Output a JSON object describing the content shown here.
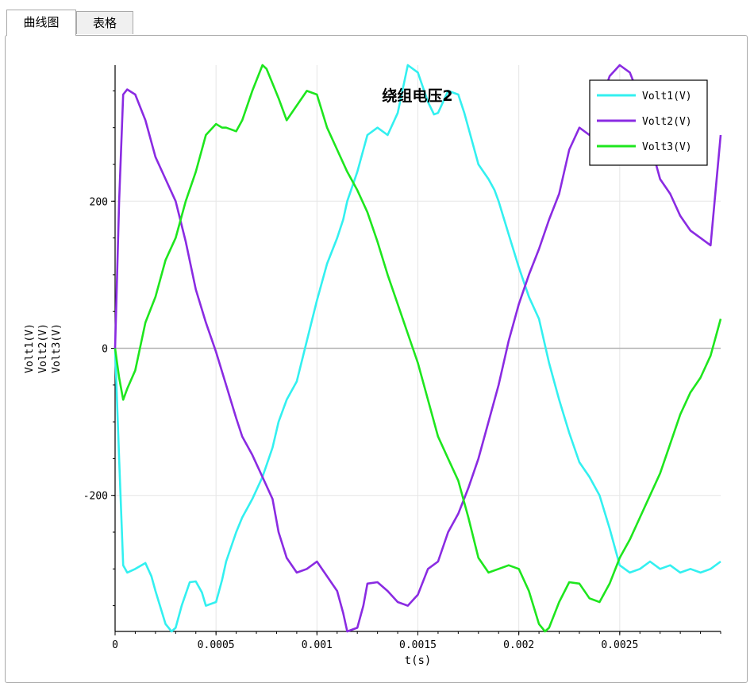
{
  "tabs": [
    {
      "label": "曲线图",
      "active": true
    },
    {
      "label": "表格",
      "active": false
    }
  ],
  "chart_data": {
    "type": "line",
    "title": "绕组电压2",
    "xlabel": "t(s)",
    "ylabel_lines": [
      "Volt1(V)",
      "Volt2(V)",
      "Volt3(V)"
    ],
    "xlim": [
      0,
      0.003
    ],
    "ylim": [
      -385,
      385
    ],
    "xticks": [
      0,
      0.0005,
      0.001,
      0.0015,
      0.002,
      0.0025
    ],
    "xtick_labels": [
      "0",
      "0.0005",
      "0.001",
      "0.0015",
      "0.002",
      "0.0025"
    ],
    "yticks": [
      -200,
      0,
      200
    ],
    "ytick_labels": [
      "-200",
      "0",
      "200"
    ],
    "grid": true,
    "legend_position": "top-right",
    "series": [
      {
        "name": "Volt1(V)",
        "color": "#33f0f0",
        "x": [
          0,
          2e-05,
          4e-05,
          6e-05,
          0.0001,
          0.00015,
          0.00018,
          0.0002,
          0.00025,
          0.00028,
          0.0003,
          0.00033,
          0.00037,
          0.0004,
          0.00043,
          0.00045,
          0.0005,
          0.00053,
          0.00055,
          0.0006,
          0.00063,
          0.00068,
          0.00073,
          0.00078,
          0.00081,
          0.00085,
          0.0009,
          0.00095,
          0.001,
          0.00105,
          0.0011,
          0.00113,
          0.00115,
          0.0012,
          0.00125,
          0.0013,
          0.00135,
          0.0014,
          0.00145,
          0.0015,
          0.00155,
          0.00158,
          0.0016,
          0.00165,
          0.0017,
          0.00173,
          0.00175,
          0.0018,
          0.00185,
          0.00188,
          0.0019,
          0.00195,
          0.002,
          0.00205,
          0.0021,
          0.00215,
          0.0022,
          0.00225,
          0.0023,
          0.00235,
          0.0024,
          0.00245,
          0.0025,
          0.00255,
          0.0026,
          0.00265,
          0.0027,
          0.00275,
          0.0028,
          0.00285,
          0.0029,
          0.00295,
          0.003
        ],
        "y": [
          0,
          -150,
          -295,
          -305,
          -300,
          -292,
          -310,
          -330,
          -375,
          -385,
          -380,
          -350,
          -318,
          -317,
          -332,
          -350,
          -345,
          -315,
          -290,
          -250,
          -230,
          -205,
          -175,
          -135,
          -100,
          -70,
          -45,
          10,
          65,
          115,
          150,
          175,
          200,
          240,
          290,
          300,
          290,
          320,
          385,
          375,
          335,
          318,
          320,
          350,
          345,
          320,
          300,
          250,
          230,
          215,
          200,
          155,
          110,
          70,
          40,
          -20,
          -70,
          -115,
          -155,
          -175,
          -200,
          -245,
          -295,
          -305,
          -300,
          -290,
          -300,
          -295,
          -305,
          -300,
          -305,
          -300,
          -290
        ]
      },
      {
        "name": "Volt2(V)",
        "color": "#8a2be2",
        "x": [
          0,
          2e-05,
          4e-05,
          6e-05,
          0.0001,
          0.00015,
          0.0002,
          0.00025,
          0.0003,
          0.00035,
          0.0004,
          0.00045,
          0.0005,
          0.00055,
          0.0006,
          0.00063,
          0.00068,
          0.00073,
          0.00078,
          0.00081,
          0.00085,
          0.0009,
          0.00095,
          0.001,
          0.00105,
          0.0011,
          0.00113,
          0.00115,
          0.0012,
          0.00123,
          0.00125,
          0.0013,
          0.00135,
          0.0014,
          0.00145,
          0.0015,
          0.00155,
          0.0016,
          0.00165,
          0.0017,
          0.00175,
          0.0018,
          0.00185,
          0.0019,
          0.00195,
          0.002,
          0.00205,
          0.0021,
          0.00215,
          0.0022,
          0.00225,
          0.0023,
          0.00235,
          0.0024,
          0.00245,
          0.0025,
          0.00255,
          0.0026,
          0.00263,
          0.00265,
          0.00268,
          0.0027,
          0.00275,
          0.0028,
          0.00285,
          0.0029,
          0.00295,
          0.003
        ],
        "y": [
          0,
          200,
          345,
          352,
          345,
          310,
          260,
          230,
          200,
          145,
          80,
          35,
          -5,
          -50,
          -95,
          -120,
          -145,
          -175,
          -205,
          -250,
          -285,
          -305,
          -300,
          -290,
          -310,
          -330,
          -360,
          -385,
          -380,
          -350,
          -320,
          -318,
          -330,
          -345,
          -350,
          -335,
          -300,
          -290,
          -250,
          -225,
          -190,
          -150,
          -100,
          -50,
          10,
          60,
          100,
          135,
          175,
          210,
          270,
          300,
          290,
          330,
          370,
          385,
          375,
          340,
          300,
          270,
          250,
          230,
          210,
          180,
          160,
          150,
          140,
          290
        ]
      },
      {
        "name": "Volt3(V)",
        "color": "#1ee61e",
        "x": [
          0,
          2e-05,
          4e-05,
          6e-05,
          0.0001,
          0.00015,
          0.0002,
          0.00025,
          0.0003,
          0.00035,
          0.0004,
          0.00045,
          0.0005,
          0.00053,
          0.00055,
          0.0006,
          0.00063,
          0.00068,
          0.00073,
          0.00075,
          0.00078,
          0.00081,
          0.00085,
          0.0009,
          0.00095,
          0.001,
          0.00105,
          0.0011,
          0.00115,
          0.0012,
          0.00125,
          0.0013,
          0.00135,
          0.0014,
          0.00145,
          0.0015,
          0.00155,
          0.0016,
          0.00165,
          0.0017,
          0.00175,
          0.0018,
          0.00185,
          0.0019,
          0.00195,
          0.002,
          0.00205,
          0.0021,
          0.00213,
          0.00215,
          0.0022,
          0.00225,
          0.0023,
          0.00235,
          0.0024,
          0.00245,
          0.0025,
          0.00255,
          0.0026,
          0.00265,
          0.0027,
          0.00275,
          0.0028,
          0.00285,
          0.0029,
          0.00295,
          0.003
        ],
        "y": [
          0,
          -40,
          -70,
          -55,
          -30,
          35,
          70,
          120,
          150,
          200,
          240,
          290,
          305,
          300,
          300,
          295,
          310,
          350,
          385,
          380,
          360,
          340,
          310,
          330,
          350,
          345,
          300,
          270,
          240,
          215,
          185,
          145,
          100,
          60,
          20,
          -20,
          -70,
          -120,
          -150,
          -180,
          -230,
          -285,
          -305,
          -300,
          -295,
          -300,
          -330,
          -375,
          -385,
          -380,
          -345,
          -318,
          -320,
          -340,
          -345,
          -320,
          -285,
          -260,
          -230,
          -200,
          -170,
          -130,
          -90,
          -60,
          -40,
          -10,
          40
        ]
      }
    ]
  }
}
